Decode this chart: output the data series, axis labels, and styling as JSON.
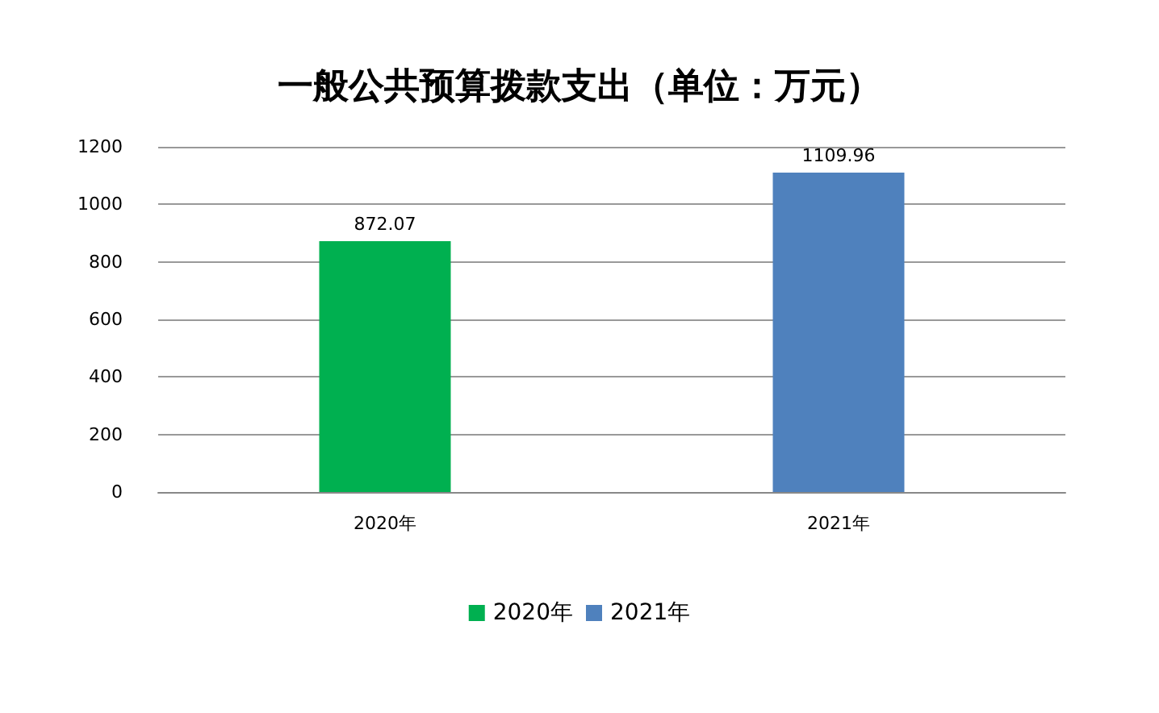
{
  "chart_data": {
    "type": "bar",
    "title": "一般公共预算拨款支出（单位：万元）",
    "categories": [
      "2020年",
      "2021年"
    ],
    "series": [
      {
        "name": "2020年",
        "color": "#00b050",
        "values": [
          872.07,
          null
        ]
      },
      {
        "name": "2021年",
        "color": "#4f81bd",
        "values": [
          null,
          1109.96
        ]
      }
    ],
    "stacked": true,
    "ylim": [
      0,
      1200
    ],
    "yticks": [
      0,
      200,
      400,
      600,
      800,
      1000,
      1200
    ],
    "grid": "y",
    "legend": "bottom",
    "data_labels": true
  }
}
